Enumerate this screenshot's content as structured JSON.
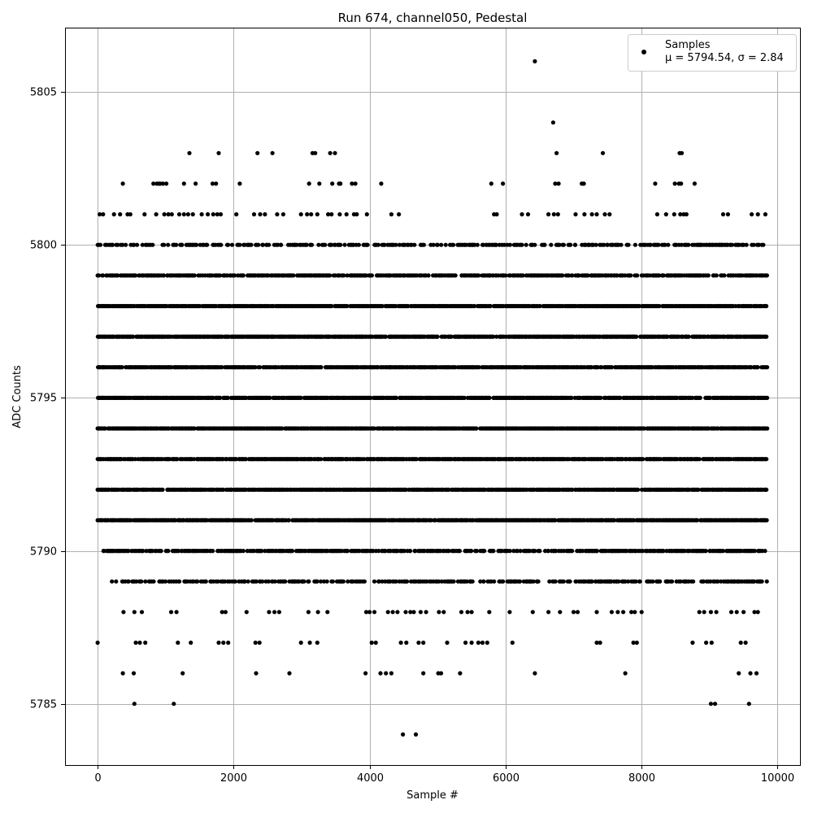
{
  "chart_data": {
    "type": "scatter",
    "title": "Run 674, channel050, Pedestal",
    "xlabel": "Sample #",
    "ylabel": "ADC Counts",
    "xlim": [
      -480,
      10330
    ],
    "ylim": [
      5783,
      5807.1
    ],
    "xticks": [
      0,
      2000,
      4000,
      6000,
      8000,
      10000
    ],
    "yticks": [
      5785,
      5790,
      5795,
      5800,
      5805
    ],
    "grid": true,
    "legend_placement": "top-right",
    "marker_color": "#000000",
    "series": [
      {
        "name": "Samples",
        "stats_label": "μ = 5794.54, σ = 2.84",
        "n_samples": 9850,
        "level_ranges": [
          {
            "y": 5800,
            "x": [
              0,
              9850
            ],
            "density": 0.55
          },
          {
            "y": 5799,
            "x": [
              0,
              9850
            ],
            "density": 0.85
          },
          {
            "y": 5798,
            "x": [
              0,
              9850
            ],
            "density": 1.0
          },
          {
            "y": 5797,
            "x": [
              0,
              9850
            ],
            "density": 1.0
          },
          {
            "y": 5796,
            "x": [
              0,
              9850
            ],
            "density": 1.0
          },
          {
            "y": 5795,
            "x": [
              0,
              9850
            ],
            "density": 1.0
          },
          {
            "y": 5794,
            "x": [
              0,
              9850
            ],
            "density": 1.0
          },
          {
            "y": 5793,
            "x": [
              0,
              9850
            ],
            "density": 1.0
          },
          {
            "y": 5792,
            "x": [
              0,
              9850
            ],
            "density": 1.0
          },
          {
            "y": 5791,
            "x": [
              0,
              9850
            ],
            "density": 1.0
          },
          {
            "y": 5790,
            "x": [
              80,
              9850
            ],
            "density": 0.75
          },
          {
            "y": 5789,
            "x": [
              180,
              9850
            ],
            "density": 0.55
          }
        ],
        "sparse_points": [
          [
            0,
            5787
          ],
          [
            370,
            5786
          ],
          [
            530,
            5786
          ],
          [
            540,
            5785
          ],
          [
            1120,
            5785
          ],
          [
            1250,
            5786
          ],
          [
            1370,
            5787
          ],
          [
            1180,
            5787
          ],
          [
            560,
            5787
          ],
          [
            620,
            5787
          ],
          [
            700,
            5787
          ],
          [
            380,
            5788
          ],
          [
            540,
            5788
          ],
          [
            650,
            5788
          ],
          [
            1080,
            5788
          ],
          [
            1160,
            5788
          ],
          [
            1830,
            5788
          ],
          [
            1880,
            5788
          ],
          [
            2190,
            5788
          ],
          [
            2520,
            5788
          ],
          [
            2600,
            5788
          ],
          [
            2670,
            5788
          ],
          [
            3100,
            5788
          ],
          [
            3240,
            5788
          ],
          [
            3380,
            5788
          ],
          [
            1780,
            5787
          ],
          [
            1850,
            5787
          ],
          [
            1920,
            5787
          ],
          [
            2320,
            5787
          ],
          [
            2380,
            5787
          ],
          [
            2990,
            5787
          ],
          [
            3120,
            5787
          ],
          [
            3230,
            5787
          ],
          [
            2330,
            5786
          ],
          [
            2820,
            5786
          ],
          [
            3950,
            5788
          ],
          [
            4000,
            5788
          ],
          [
            4070,
            5788
          ],
          [
            4270,
            5788
          ],
          [
            4340,
            5788
          ],
          [
            4410,
            5788
          ],
          [
            4530,
            5788
          ],
          [
            4600,
            5788
          ],
          [
            4650,
            5788
          ],
          [
            4750,
            5788
          ],
          [
            4830,
            5788
          ],
          [
            5020,
            5788
          ],
          [
            5090,
            5788
          ],
          [
            5350,
            5788
          ],
          [
            5440,
            5788
          ],
          [
            5500,
            5788
          ],
          [
            5760,
            5788
          ],
          [
            6060,
            5788
          ],
          [
            6400,
            5788
          ],
          [
            6630,
            5788
          ],
          [
            6800,
            5788
          ],
          [
            7000,
            5788
          ],
          [
            7060,
            5788
          ],
          [
            7340,
            5788
          ],
          [
            7560,
            5788
          ],
          [
            7650,
            5788
          ],
          [
            7730,
            5788
          ],
          [
            7850,
            5788
          ],
          [
            7900,
            5788
          ],
          [
            8000,
            5788
          ],
          [
            8850,
            5788
          ],
          [
            8920,
            5788
          ],
          [
            9020,
            5788
          ],
          [
            9100,
            5788
          ],
          [
            9320,
            5788
          ],
          [
            9400,
            5788
          ],
          [
            9500,
            5788
          ],
          [
            9660,
            5788
          ],
          [
            9710,
            5788
          ],
          [
            4030,
            5787
          ],
          [
            4090,
            5787
          ],
          [
            4460,
            5787
          ],
          [
            4540,
            5787
          ],
          [
            4720,
            5787
          ],
          [
            4790,
            5787
          ],
          [
            5140,
            5787
          ],
          [
            5410,
            5787
          ],
          [
            5500,
            5787
          ],
          [
            5600,
            5787
          ],
          [
            5660,
            5787
          ],
          [
            5730,
            5787
          ],
          [
            6100,
            5787
          ],
          [
            7340,
            5787
          ],
          [
            7390,
            5787
          ],
          [
            7880,
            5787
          ],
          [
            7930,
            5787
          ],
          [
            8750,
            5787
          ],
          [
            8950,
            5787
          ],
          [
            9030,
            5787
          ],
          [
            9460,
            5787
          ],
          [
            9530,
            5787
          ],
          [
            3940,
            5786
          ],
          [
            4160,
            5786
          ],
          [
            4240,
            5786
          ],
          [
            4320,
            5786
          ],
          [
            4790,
            5786
          ],
          [
            5010,
            5786
          ],
          [
            5050,
            5786
          ],
          [
            5330,
            5786
          ],
          [
            6430,
            5786
          ],
          [
            7760,
            5786
          ],
          [
            9430,
            5786
          ],
          [
            9600,
            5786
          ],
          [
            9690,
            5786
          ],
          [
            9020,
            5785
          ],
          [
            9080,
            5785
          ],
          [
            9580,
            5785
          ],
          [
            4490,
            5784
          ],
          [
            4680,
            5784
          ],
          [
            30,
            5801
          ],
          [
            80,
            5801
          ],
          [
            240,
            5801
          ],
          [
            330,
            5801
          ],
          [
            440,
            5801
          ],
          [
            480,
            5801
          ],
          [
            690,
            5801
          ],
          [
            860,
            5801
          ],
          [
            980,
            5801
          ],
          [
            1040,
            5801
          ],
          [
            1090,
            5801
          ],
          [
            1200,
            5801
          ],
          [
            1270,
            5801
          ],
          [
            1330,
            5801
          ],
          [
            1400,
            5801
          ],
          [
            1530,
            5801
          ],
          [
            1620,
            5801
          ],
          [
            1700,
            5801
          ],
          [
            1760,
            5801
          ],
          [
            1810,
            5801
          ],
          [
            2040,
            5801
          ],
          [
            2300,
            5801
          ],
          [
            2390,
            5801
          ],
          [
            2460,
            5801
          ],
          [
            2640,
            5801
          ],
          [
            2730,
            5801
          ],
          [
            2990,
            5801
          ],
          [
            3080,
            5801
          ],
          [
            3140,
            5801
          ],
          [
            3230,
            5801
          ],
          [
            3390,
            5801
          ],
          [
            3440,
            5801
          ],
          [
            3560,
            5801
          ],
          [
            3660,
            5801
          ],
          [
            3770,
            5801
          ],
          [
            3810,
            5801
          ],
          [
            3960,
            5801
          ],
          [
            4320,
            5801
          ],
          [
            4430,
            5801
          ],
          [
            5830,
            5801
          ],
          [
            5870,
            5801
          ],
          [
            6240,
            5801
          ],
          [
            6330,
            5801
          ],
          [
            6630,
            5801
          ],
          [
            6710,
            5801
          ],
          [
            6770,
            5801
          ],
          [
            7030,
            5801
          ],
          [
            7160,
            5801
          ],
          [
            7270,
            5801
          ],
          [
            7340,
            5801
          ],
          [
            7460,
            5801
          ],
          [
            7530,
            5801
          ],
          [
            8230,
            5801
          ],
          [
            8360,
            5801
          ],
          [
            8480,
            5801
          ],
          [
            8570,
            5801
          ],
          [
            8620,
            5801
          ],
          [
            8660,
            5801
          ],
          [
            9200,
            5801
          ],
          [
            9270,
            5801
          ],
          [
            9620,
            5801
          ],
          [
            9710,
            5801
          ],
          [
            9820,
            5801
          ],
          [
            370,
            5802
          ],
          [
            820,
            5802
          ],
          [
            870,
            5802
          ],
          [
            900,
            5802
          ],
          [
            920,
            5802
          ],
          [
            960,
            5802
          ],
          [
            1010,
            5802
          ],
          [
            1270,
            5802
          ],
          [
            1440,
            5802
          ],
          [
            1690,
            5802
          ],
          [
            1740,
            5802
          ],
          [
            2090,
            5802
          ],
          [
            3110,
            5802
          ],
          [
            3260,
            5802
          ],
          [
            3450,
            5802
          ],
          [
            3550,
            5802
          ],
          [
            3570,
            5802
          ],
          [
            3740,
            5802
          ],
          [
            3790,
            5802
          ],
          [
            4170,
            5802
          ],
          [
            5790,
            5802
          ],
          [
            5960,
            5802
          ],
          [
            6730,
            5802
          ],
          [
            6780,
            5802
          ],
          [
            7120,
            5802
          ],
          [
            7150,
            5802
          ],
          [
            8200,
            5802
          ],
          [
            8490,
            5802
          ],
          [
            8550,
            5802
          ],
          [
            8580,
            5802
          ],
          [
            8780,
            5802
          ],
          [
            1350,
            5803
          ],
          [
            1780,
            5803
          ],
          [
            2350,
            5803
          ],
          [
            2570,
            5803
          ],
          [
            3160,
            5803
          ],
          [
            3200,
            5803
          ],
          [
            3420,
            5803
          ],
          [
            3490,
            5803
          ],
          [
            6750,
            5803
          ],
          [
            7430,
            5803
          ],
          [
            8560,
            5803
          ],
          [
            8590,
            5803
          ],
          [
            6700,
            5804
          ],
          [
            6430,
            5806
          ]
        ]
      }
    ]
  }
}
